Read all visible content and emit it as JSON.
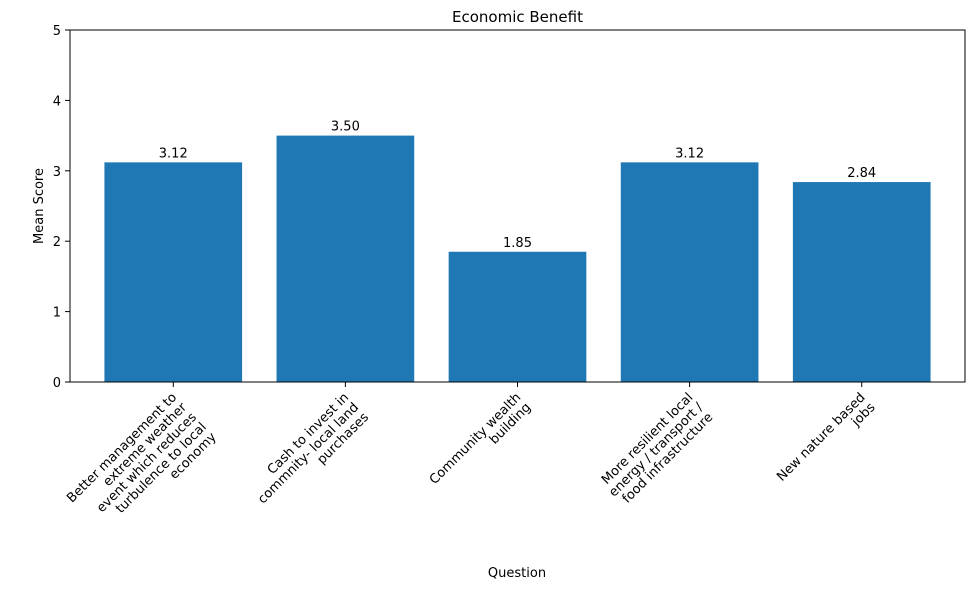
{
  "chart_data": {
    "type": "bar",
    "title": "Economic Benefit",
    "xlabel": "Question",
    "ylabel": "Mean Score",
    "ylim": [
      0,
      5
    ],
    "yticks": [
      0,
      1,
      2,
      3,
      4,
      5
    ],
    "grid": false,
    "bar_color": "#1f77b4",
    "categories": [
      [
        "Better management to",
        "extreme weather",
        "event which reduces",
        "turbulence to local",
        "economy"
      ],
      [
        "Cash to invest in",
        "commnity- local land",
        "purchases"
      ],
      [
        "Community wealth",
        "building"
      ],
      [
        "More resilient local",
        "energy / transport /",
        "food infrastructure"
      ],
      [
        "New nature based",
        "jobs"
      ]
    ],
    "values": [
      3.12,
      3.5,
      1.85,
      3.12,
      2.84
    ],
    "value_labels": [
      "3.12",
      "3.50",
      "1.85",
      "3.12",
      "2.84"
    ]
  }
}
